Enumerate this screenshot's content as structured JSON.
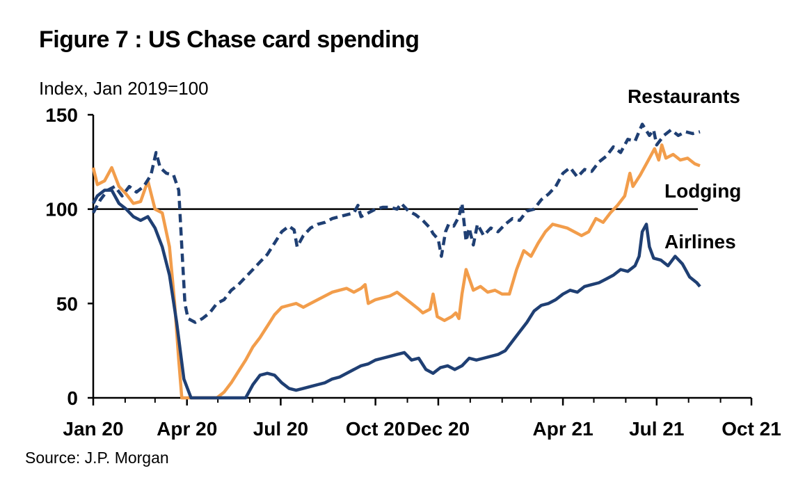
{
  "title": "Figure 7 : US Chase card spending",
  "unit_label": "Index, Jan 2019=100",
  "source": "Source: J.P. Morgan",
  "chart_data": {
    "type": "line",
    "title": "Figure 7 : US Chase card spending",
    "ylabel": "Index, Jan 2019=100",
    "xlabel": "",
    "ylim": [
      0,
      150
    ],
    "yticks": [
      0,
      50,
      100,
      150
    ],
    "xlim": [
      "2020-01-01",
      "2021-10-01"
    ],
    "xtick_labels": [
      "Jan 20",
      "Apr 20",
      "Jul 20",
      "Oct 20",
      "Dec 20",
      "Apr 21",
      "Jul 21",
      "Oct 21"
    ],
    "xtick_dates": [
      "2020-01-01",
      "2020-04-01",
      "2020-07-01",
      "2020-10-01",
      "2020-12-01",
      "2021-04-01",
      "2021-07-01",
      "2021-10-01"
    ],
    "reference_line": 100,
    "grid": false,
    "legend": "inline labels",
    "series": [
      {
        "name": "Restaurants",
        "color": "#1f3f73",
        "style": "dashed",
        "points": [
          [
            "2020-01-01",
            98
          ],
          [
            "2020-01-08",
            105
          ],
          [
            "2020-01-15",
            110
          ],
          [
            "2020-01-22",
            112
          ],
          [
            "2020-01-29",
            107
          ],
          [
            "2020-02-05",
            112
          ],
          [
            "2020-02-12",
            109
          ],
          [
            "2020-02-19",
            112
          ],
          [
            "2020-02-26",
            118
          ],
          [
            "2020-03-02",
            130
          ],
          [
            "2020-03-06",
            122
          ],
          [
            "2020-03-12",
            119
          ],
          [
            "2020-03-19",
            118
          ],
          [
            "2020-03-24",
            110
          ],
          [
            "2020-03-27",
            80
          ],
          [
            "2020-03-30",
            50
          ],
          [
            "2020-04-02",
            42
          ],
          [
            "2020-04-09",
            40
          ],
          [
            "2020-04-16",
            42
          ],
          [
            "2020-04-23",
            45
          ],
          [
            "2020-04-30",
            50
          ],
          [
            "2020-05-07",
            52
          ],
          [
            "2020-05-14",
            57
          ],
          [
            "2020-05-21",
            60
          ],
          [
            "2020-05-28",
            64
          ],
          [
            "2020-06-04",
            68
          ],
          [
            "2020-06-11",
            72
          ],
          [
            "2020-06-18",
            76
          ],
          [
            "2020-06-25",
            82
          ],
          [
            "2020-07-02",
            88
          ],
          [
            "2020-07-09",
            91
          ],
          [
            "2020-07-14",
            89
          ],
          [
            "2020-07-17",
            80
          ],
          [
            "2020-07-23",
            86
          ],
          [
            "2020-07-30",
            90
          ],
          [
            "2020-08-06",
            92
          ],
          [
            "2020-08-13",
            93
          ],
          [
            "2020-08-20",
            95
          ],
          [
            "2020-08-27",
            96
          ],
          [
            "2020-09-03",
            97
          ],
          [
            "2020-09-10",
            98
          ],
          [
            "2020-09-14",
            102
          ],
          [
            "2020-09-17",
            96
          ],
          [
            "2020-09-24",
            98
          ],
          [
            "2020-10-01",
            100
          ],
          [
            "2020-10-08",
            101
          ],
          [
            "2020-10-15",
            101
          ],
          [
            "2020-10-22",
            100
          ],
          [
            "2020-10-26",
            103
          ],
          [
            "2020-11-02",
            99
          ],
          [
            "2020-11-09",
            97
          ],
          [
            "2020-11-16",
            94
          ],
          [
            "2020-11-23",
            90
          ],
          [
            "2020-11-26",
            87
          ],
          [
            "2020-12-01",
            84
          ],
          [
            "2020-12-04",
            75
          ],
          [
            "2020-12-08",
            88
          ],
          [
            "2020-12-11",
            92
          ],
          [
            "2020-12-16",
            91
          ],
          [
            "2020-12-21",
            96
          ],
          [
            "2020-12-24",
            103
          ],
          [
            "2020-12-28",
            83
          ],
          [
            "2020-12-31",
            90
          ],
          [
            "2021-01-04",
            81
          ],
          [
            "2021-01-08",
            92
          ],
          [
            "2021-01-14",
            86
          ],
          [
            "2021-01-21",
            90
          ],
          [
            "2021-01-28",
            88
          ],
          [
            "2021-02-04",
            92
          ],
          [
            "2021-02-11",
            95
          ],
          [
            "2021-02-18",
            94
          ],
          [
            "2021-02-25",
            99
          ],
          [
            "2021-03-04",
            100
          ],
          [
            "2021-03-11",
            105
          ],
          [
            "2021-03-18",
            108
          ],
          [
            "2021-03-25",
            112
          ],
          [
            "2021-04-01",
            119
          ],
          [
            "2021-04-08",
            122
          ],
          [
            "2021-04-15",
            117
          ],
          [
            "2021-04-22",
            121
          ],
          [
            "2021-04-29",
            120
          ],
          [
            "2021-05-06",
            125
          ],
          [
            "2021-05-13",
            128
          ],
          [
            "2021-05-20",
            133
          ],
          [
            "2021-05-27",
            130
          ],
          [
            "2021-06-03",
            137
          ],
          [
            "2021-06-10",
            136
          ],
          [
            "2021-06-17",
            145
          ],
          [
            "2021-06-24",
            139
          ],
          [
            "2021-06-28",
            142
          ],
          [
            "2021-07-01",
            134
          ],
          [
            "2021-07-08",
            139
          ],
          [
            "2021-07-15",
            142
          ],
          [
            "2021-07-22",
            139
          ],
          [
            "2021-07-29",
            141
          ],
          [
            "2021-08-05",
            140
          ],
          [
            "2021-08-12",
            141
          ]
        ]
      },
      {
        "name": "Lodging",
        "color": "#f29d4b",
        "style": "solid",
        "points": [
          [
            "2020-01-01",
            122
          ],
          [
            "2020-01-05",
            113
          ],
          [
            "2020-01-12",
            115
          ],
          [
            "2020-01-19",
            122
          ],
          [
            "2020-01-26",
            112
          ],
          [
            "2020-02-02",
            108
          ],
          [
            "2020-02-09",
            103
          ],
          [
            "2020-02-16",
            104
          ],
          [
            "2020-02-23",
            115
          ],
          [
            "2020-03-01",
            100
          ],
          [
            "2020-03-08",
            98
          ],
          [
            "2020-03-15",
            80
          ],
          [
            "2020-03-20",
            50
          ],
          [
            "2020-03-24",
            20
          ],
          [
            "2020-03-27",
            0
          ],
          [
            "2020-04-30",
            0
          ],
          [
            "2020-05-07",
            3
          ],
          [
            "2020-05-14",
            8
          ],
          [
            "2020-05-21",
            14
          ],
          [
            "2020-05-28",
            20
          ],
          [
            "2020-06-04",
            27
          ],
          [
            "2020-06-11",
            32
          ],
          [
            "2020-06-18",
            38
          ],
          [
            "2020-06-25",
            44
          ],
          [
            "2020-07-02",
            48
          ],
          [
            "2020-07-09",
            49
          ],
          [
            "2020-07-16",
            50
          ],
          [
            "2020-07-23",
            48
          ],
          [
            "2020-07-30",
            50
          ],
          [
            "2020-08-06",
            52
          ],
          [
            "2020-08-13",
            54
          ],
          [
            "2020-08-20",
            56
          ],
          [
            "2020-08-27",
            57
          ],
          [
            "2020-09-03",
            58
          ],
          [
            "2020-09-10",
            56
          ],
          [
            "2020-09-17",
            58
          ],
          [
            "2020-09-21",
            60
          ],
          [
            "2020-09-24",
            50
          ],
          [
            "2020-10-01",
            52
          ],
          [
            "2020-10-08",
            53
          ],
          [
            "2020-10-15",
            54
          ],
          [
            "2020-10-22",
            56
          ],
          [
            "2020-10-29",
            53
          ],
          [
            "2020-11-05",
            50
          ],
          [
            "2020-11-12",
            47
          ],
          [
            "2020-11-16",
            45
          ],
          [
            "2020-11-23",
            47
          ],
          [
            "2020-11-26",
            55
          ],
          [
            "2020-11-30",
            43
          ],
          [
            "2020-12-07",
            41
          ],
          [
            "2020-12-14",
            43
          ],
          [
            "2020-12-18",
            45
          ],
          [
            "2020-12-21",
            42
          ],
          [
            "2020-12-24",
            55
          ],
          [
            "2020-12-28",
            68
          ],
          [
            "2021-01-04",
            57
          ],
          [
            "2021-01-11",
            59
          ],
          [
            "2021-01-18",
            56
          ],
          [
            "2021-01-25",
            57
          ],
          [
            "2021-02-01",
            55
          ],
          [
            "2021-02-08",
            55
          ],
          [
            "2021-02-15",
            68
          ],
          [
            "2021-02-22",
            78
          ],
          [
            "2021-03-01",
            75
          ],
          [
            "2021-03-08",
            82
          ],
          [
            "2021-03-15",
            88
          ],
          [
            "2021-03-22",
            92
          ],
          [
            "2021-03-29",
            91
          ],
          [
            "2021-04-05",
            90
          ],
          [
            "2021-04-12",
            88
          ],
          [
            "2021-04-19",
            86
          ],
          [
            "2021-04-26",
            88
          ],
          [
            "2021-05-03",
            95
          ],
          [
            "2021-05-10",
            93
          ],
          [
            "2021-05-17",
            98
          ],
          [
            "2021-05-24",
            102
          ],
          [
            "2021-05-31",
            107
          ],
          [
            "2021-06-05",
            119
          ],
          [
            "2021-06-08",
            112
          ],
          [
            "2021-06-15",
            118
          ],
          [
            "2021-06-22",
            125
          ],
          [
            "2021-06-29",
            132
          ],
          [
            "2021-07-03",
            126
          ],
          [
            "2021-07-06",
            134
          ],
          [
            "2021-07-10",
            127
          ],
          [
            "2021-07-17",
            129
          ],
          [
            "2021-07-24",
            126
          ],
          [
            "2021-07-31",
            127
          ],
          [
            "2021-08-07",
            124
          ],
          [
            "2021-08-12",
            123
          ]
        ]
      },
      {
        "name": "Airlines",
        "color": "#1f3f73",
        "style": "solid",
        "points": [
          [
            "2020-01-01",
            103
          ],
          [
            "2020-01-05",
            107
          ],
          [
            "2020-01-12",
            110
          ],
          [
            "2020-01-19",
            110
          ],
          [
            "2020-01-26",
            103
          ],
          [
            "2020-02-02",
            100
          ],
          [
            "2020-02-09",
            96
          ],
          [
            "2020-02-16",
            94
          ],
          [
            "2020-02-23",
            96
          ],
          [
            "2020-03-01",
            90
          ],
          [
            "2020-03-08",
            80
          ],
          [
            "2020-03-15",
            65
          ],
          [
            "2020-03-22",
            40
          ],
          [
            "2020-03-29",
            10
          ],
          [
            "2020-04-05",
            0
          ],
          [
            "2020-05-28",
            0
          ],
          [
            "2020-06-04",
            7
          ],
          [
            "2020-06-11",
            12
          ],
          [
            "2020-06-18",
            13
          ],
          [
            "2020-06-25",
            12
          ],
          [
            "2020-07-02",
            8
          ],
          [
            "2020-07-09",
            5
          ],
          [
            "2020-07-16",
            4
          ],
          [
            "2020-07-23",
            5
          ],
          [
            "2020-07-30",
            6
          ],
          [
            "2020-08-06",
            7
          ],
          [
            "2020-08-13",
            8
          ],
          [
            "2020-08-20",
            10
          ],
          [
            "2020-08-27",
            11
          ],
          [
            "2020-09-03",
            13
          ],
          [
            "2020-09-10",
            15
          ],
          [
            "2020-09-17",
            17
          ],
          [
            "2020-09-24",
            18
          ],
          [
            "2020-10-01",
            20
          ],
          [
            "2020-10-08",
            21
          ],
          [
            "2020-10-15",
            22
          ],
          [
            "2020-10-22",
            23
          ],
          [
            "2020-10-29",
            24
          ],
          [
            "2020-11-05",
            20
          ],
          [
            "2020-11-12",
            21
          ],
          [
            "2020-11-19",
            15
          ],
          [
            "2020-11-26",
            13
          ],
          [
            "2020-12-03",
            16
          ],
          [
            "2020-12-10",
            17
          ],
          [
            "2020-12-17",
            15
          ],
          [
            "2020-12-24",
            17
          ],
          [
            "2020-12-31",
            21
          ],
          [
            "2021-01-07",
            20
          ],
          [
            "2021-01-14",
            21
          ],
          [
            "2021-01-21",
            22
          ],
          [
            "2021-01-28",
            23
          ],
          [
            "2021-02-04",
            25
          ],
          [
            "2021-02-11",
            30
          ],
          [
            "2021-02-18",
            35
          ],
          [
            "2021-02-25",
            40
          ],
          [
            "2021-03-04",
            46
          ],
          [
            "2021-03-11",
            49
          ],
          [
            "2021-03-18",
            50
          ],
          [
            "2021-03-25",
            52
          ],
          [
            "2021-04-01",
            55
          ],
          [
            "2021-04-08",
            57
          ],
          [
            "2021-04-15",
            56
          ],
          [
            "2021-04-22",
            59
          ],
          [
            "2021-04-29",
            60
          ],
          [
            "2021-05-06",
            61
          ],
          [
            "2021-05-13",
            63
          ],
          [
            "2021-05-20",
            65
          ],
          [
            "2021-05-27",
            68
          ],
          [
            "2021-06-03",
            67
          ],
          [
            "2021-06-10",
            70
          ],
          [
            "2021-06-14",
            75
          ],
          [
            "2021-06-17",
            88
          ],
          [
            "2021-06-21",
            92
          ],
          [
            "2021-06-24",
            80
          ],
          [
            "2021-06-28",
            74
          ],
          [
            "2021-07-05",
            73
          ],
          [
            "2021-07-12",
            70
          ],
          [
            "2021-07-19",
            75
          ],
          [
            "2021-07-26",
            71
          ],
          [
            "2021-08-02",
            64
          ],
          [
            "2021-08-09",
            61
          ],
          [
            "2021-08-12",
            59
          ]
        ]
      }
    ]
  }
}
